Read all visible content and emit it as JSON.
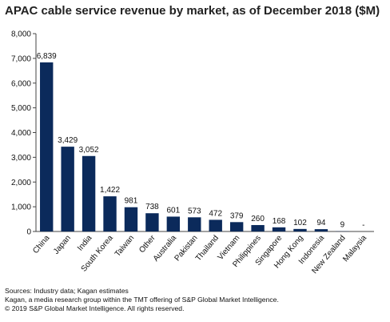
{
  "chart_data": {
    "type": "bar",
    "title": "APAC cable service revenue by market, as of December 2018 ($M)",
    "categories": [
      "China",
      "Japan",
      "India",
      "South Korea",
      "Taiwan",
      "Other",
      "Australia",
      "Pakistan",
      "Thailand",
      "Vietnam",
      "Philippines",
      "Singapore",
      "Hong Kong",
      "Indonesia",
      "New Zealand",
      "Malaysia"
    ],
    "values": [
      6839,
      3429,
      3052,
      1422,
      981,
      738,
      601,
      573,
      472,
      379,
      260,
      168,
      102,
      94,
      9,
      0
    ],
    "data_labels": [
      "6,839",
      "3,429",
      "3,052",
      "1,422",
      "981",
      "738",
      "601",
      "573",
      "472",
      "379",
      "260",
      "168",
      "102",
      "94",
      "9",
      "-"
    ],
    "y_ticks": [
      "0",
      "1,000",
      "2,000",
      "3,000",
      "4,000",
      "5,000",
      "6,000",
      "7,000",
      "8,000"
    ],
    "ylim": [
      0,
      8000
    ],
    "xlabel": "",
    "ylabel": "",
    "grid": false,
    "bar_color": "#0b2a5b"
  },
  "footer": {
    "sources": "Sources: Industry data; Kagan estimates",
    "line2": "Kagan, a media research group within the TMT offering of S&P Global Market Intelligence.",
    "line3": "© 2019 S&P Global Market Intelligence. All rights reserved."
  }
}
